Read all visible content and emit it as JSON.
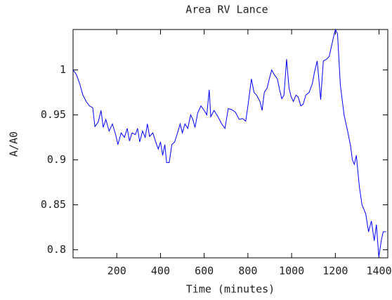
{
  "chart_data": {
    "type": "line",
    "title": "Area RV Lance",
    "xlabel": "Time (minutes)",
    "ylabel": "A/A0",
    "color": "#0000ff",
    "x": [
      0,
      15,
      30,
      45,
      60,
      75,
      90,
      100,
      115,
      128,
      138,
      150,
      165,
      180,
      195,
      205,
      220,
      235,
      248,
      258,
      270,
      285,
      295,
      305,
      318,
      330,
      340,
      350,
      365,
      378,
      390,
      400,
      410,
      420,
      428,
      440,
      452,
      465,
      478,
      490,
      500,
      512,
      525,
      538,
      548,
      558,
      570,
      585,
      600,
      612,
      623,
      630,
      645,
      663,
      680,
      695,
      710,
      725,
      743,
      760,
      775,
      790,
      800,
      816,
      828,
      840,
      855,
      865,
      875,
      888,
      900,
      909,
      920,
      935,
      945,
      955,
      965,
      977,
      988,
      998,
      1008,
      1020,
      1030,
      1042,
      1053,
      1065,
      1080,
      1095,
      1105,
      1117,
      1133,
      1145,
      1160,
      1172,
      1181,
      1195,
      1201,
      1210,
      1223,
      1240,
      1258,
      1270,
      1278,
      1287,
      1296,
      1310,
      1322,
      1339,
      1352,
      1365,
      1378,
      1388,
      1399,
      1410,
      1419,
      1432
    ],
    "values": [
      1.0,
      0.995,
      0.985,
      0.972,
      0.965,
      0.96,
      0.958,
      0.937,
      0.942,
      0.955,
      0.936,
      0.945,
      0.932,
      0.94,
      0.928,
      0.917,
      0.93,
      0.925,
      0.935,
      0.921,
      0.93,
      0.928,
      0.935,
      0.92,
      0.932,
      0.925,
      0.94,
      0.926,
      0.93,
      0.92,
      0.912,
      0.92,
      0.905,
      0.917,
      0.897,
      0.897,
      0.917,
      0.92,
      0.93,
      0.94,
      0.93,
      0.94,
      0.935,
      0.95,
      0.945,
      0.936,
      0.952,
      0.96,
      0.955,
      0.95,
      0.978,
      0.948,
      0.955,
      0.948,
      0.94,
      0.935,
      0.957,
      0.956,
      0.953,
      0.945,
      0.946,
      0.943,
      0.96,
      0.99,
      0.975,
      0.972,
      0.965,
      0.955,
      0.975,
      0.98,
      0.992,
      1.0,
      0.995,
      0.99,
      0.978,
      0.968,
      0.972,
      1.012,
      0.98,
      0.97,
      0.965,
      0.972,
      0.97,
      0.96,
      0.962,
      0.972,
      0.975,
      0.985,
      0.998,
      1.01,
      0.967,
      1.01,
      1.012,
      1.015,
      1.025,
      1.04,
      1.045,
      1.04,
      0.983,
      0.95,
      0.93,
      0.915,
      0.9,
      0.895,
      0.905,
      0.87,
      0.85,
      0.84,
      0.82,
      0.832,
      0.81,
      0.828,
      0.792,
      0.81,
      0.82,
      0.82
    ],
    "xlim": [
      0,
      1440
    ],
    "xticks": [
      200,
      400,
      600,
      800,
      1000,
      1200,
      1400
    ],
    "ylim": [
      0.791,
      1.045
    ],
    "yticks": [
      0.8,
      0.85,
      0.9,
      0.95,
      1
    ]
  }
}
